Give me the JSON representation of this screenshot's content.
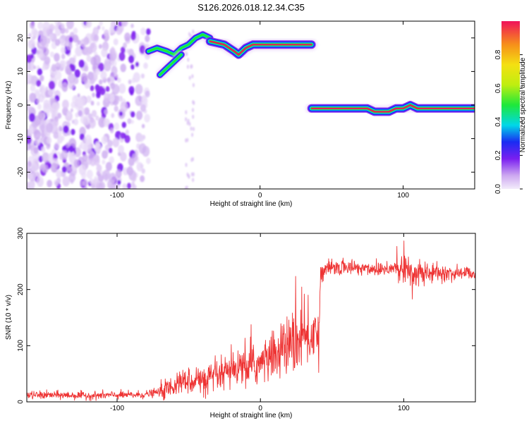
{
  "title": "S126.2026.018.12.34.C35",
  "chart_data": [
    {
      "type": "heatmap",
      "xlabel": "Height of straight line (km)",
      "ylabel": "Frequency (Hz)",
      "xlim": [
        -163,
        150
      ],
      "ylim": [
        -25,
        25
      ],
      "x_ticks": [
        -100,
        0,
        100
      ],
      "y_ticks": [
        -20,
        -10,
        0,
        10,
        20
      ],
      "colorbar": {
        "label": "Normalized spectral amplitude",
        "range": [
          0,
          1
        ],
        "ticks": [
          0.0,
          0.2,
          0.4,
          0.6,
          0.8
        ]
      },
      "noise_region": {
        "x_range": [
          -163,
          -78
        ],
        "y_range": [
          -25,
          25
        ]
      },
      "features": [
        {
          "name": "rising-branch",
          "points": [
            [
              -78,
              16
            ],
            [
              -72,
              17
            ],
            [
              -65,
              16
            ],
            [
              -60,
              15
            ],
            [
              -55,
              17
            ],
            [
              -50,
              18
            ],
            [
              -45,
              20
            ],
            [
              -40,
              21
            ],
            [
              -35,
              20
            ]
          ]
        },
        {
          "name": "lower-tail",
          "points": [
            [
              -70,
              9
            ],
            [
              -65,
              11
            ],
            [
              -60,
              13
            ],
            [
              -55,
              15
            ]
          ]
        },
        {
          "name": "upper-band",
          "points": [
            [
              -35,
              19
            ],
            [
              -25,
              18
            ],
            [
              -18,
              16
            ],
            [
              -15,
              15
            ],
            [
              -10,
              17
            ],
            [
              -5,
              18
            ],
            [
              0,
              18
            ],
            [
              10,
              18
            ],
            [
              20,
              18
            ],
            [
              30,
              18
            ],
            [
              36,
              18
            ]
          ]
        },
        {
          "name": "lower-band",
          "points": [
            [
              36,
              -1
            ],
            [
              50,
              -1
            ],
            [
              65,
              -1
            ],
            [
              75,
              -1
            ],
            [
              80,
              -2
            ],
            [
              90,
              -2
            ],
            [
              95,
              -1
            ],
            [
              100,
              -1
            ],
            [
              105,
              0
            ],
            [
              110,
              -1
            ],
            [
              120,
              -1
            ],
            [
              130,
              -1
            ],
            [
              140,
              -1
            ],
            [
              150,
              -1
            ]
          ]
        }
      ]
    },
    {
      "type": "line",
      "xlabel": "Height of straight line (km)",
      "ylabel": "SNR (10 * v/v)",
      "xlim": [
        -163,
        150
      ],
      "ylim": [
        0,
        300
      ],
      "x_ticks": [
        -100,
        0,
        100
      ],
      "y_ticks": [
        0,
        100,
        200,
        300
      ],
      "color": "#ee3333",
      "series": [
        {
          "name": "",
          "x": [
            -163,
            -140,
            -120,
            -100,
            -90,
            -80,
            -70,
            -60,
            -55,
            -50,
            -45,
            -40,
            -35,
            -30,
            -25,
            -20,
            -15,
            -10,
            -5,
            0,
            5,
            10,
            15,
            20,
            25,
            30,
            35,
            40,
            41,
            42,
            45,
            50,
            60,
            70,
            80,
            90,
            95,
            100,
            105,
            110,
            115,
            120,
            130,
            140,
            150
          ],
          "y": [
            12,
            12,
            11,
            12,
            12,
            13,
            18,
            28,
            35,
            38,
            42,
            35,
            40,
            45,
            48,
            55,
            58,
            60,
            65,
            68,
            75,
            85,
            92,
            100,
            105,
            112,
            118,
            122,
            125,
            230,
            235,
            238,
            240,
            238,
            237,
            238,
            240,
            235,
            232,
            230,
            228,
            230,
            228,
            230,
            230
          ]
        }
      ]
    }
  ]
}
